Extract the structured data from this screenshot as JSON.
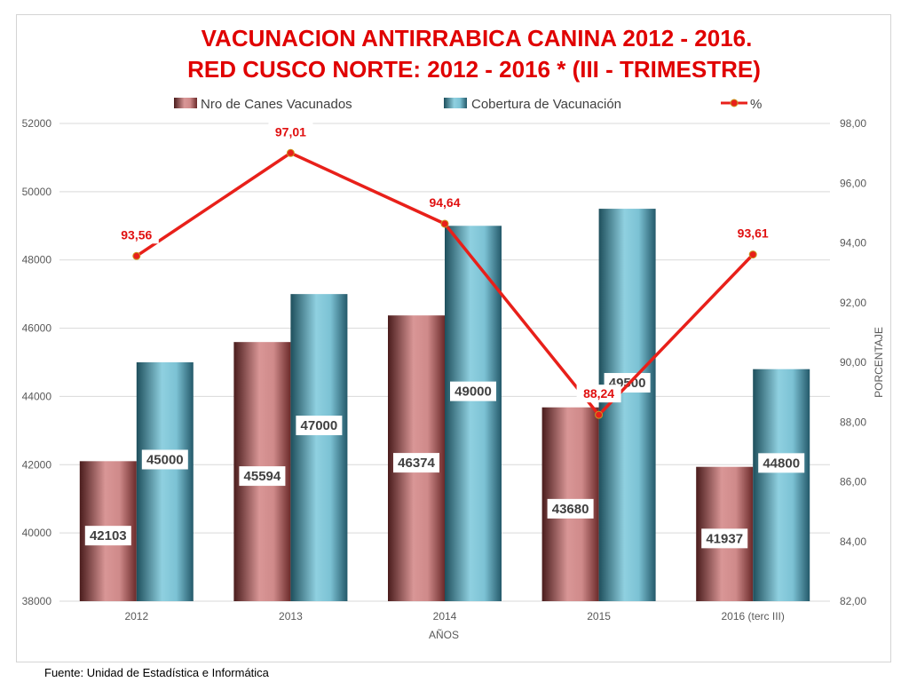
{
  "chart_data": {
    "type": "bar",
    "title_line1": "VACUNACION ANTIRRABICA CANINA 2012 - 2016.",
    "title_line2": "RED CUSCO NORTE: 2012 - 2016 * (III - TRIMESTRE)",
    "categories": [
      "2012",
      "2013",
      "2014",
      "2015",
      "2016 (terc III)"
    ],
    "series": [
      {
        "name": "Nro de Canes Vacunados",
        "type": "bar",
        "axis": "left",
        "values": [
          42103,
          45594,
          46374,
          43680,
          41937
        ],
        "color": "#c97b7b"
      },
      {
        "name": "Cobertura de Vacunación",
        "type": "bar",
        "axis": "left",
        "values": [
          45000,
          47000,
          49000,
          49500,
          44800
        ],
        "color": "#5aa5b8"
      },
      {
        "name": "%",
        "type": "line",
        "axis": "right",
        "values": [
          93.56,
          97.01,
          94.64,
          88.24,
          93.61
        ],
        "labels": [
          "93,56",
          "97,01",
          "94,64",
          "88,24",
          "93,61"
        ],
        "color": "#e8201a"
      }
    ],
    "xlabel": "AÑOS",
    "ylabel": "",
    "y2label": "PORCENTAJE",
    "ylim": [
      38000,
      52000
    ],
    "yticks": [
      "38000",
      "40000",
      "42000",
      "44000",
      "46000",
      "48000",
      "50000",
      "52000"
    ],
    "y2lim": [
      82,
      98
    ],
    "y2ticks": [
      "82,00",
      "84,00",
      "86,00",
      "88,00",
      "90,00",
      "92,00",
      "94,00",
      "96,00",
      "98,00"
    ],
    "grid": true,
    "legend_position": "top"
  },
  "source": "Fuente: Unidad de Estadística e Informática"
}
